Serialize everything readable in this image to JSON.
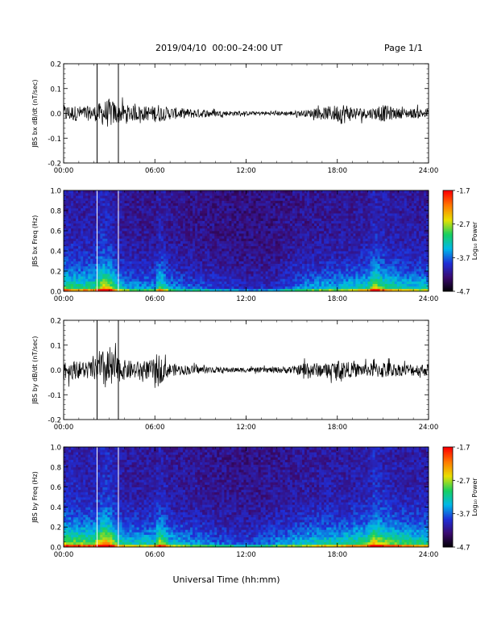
{
  "header": {
    "title": "2019/04/10  00:00–24:00 UT",
    "page": "Page 1/1"
  },
  "colors": {
    "background": "#ffffff",
    "trace": "#000000",
    "colormap": [
      "#000000",
      "#3a0a6e",
      "#1f2fd8",
      "#00b8e8",
      "#18d060",
      "#e8e000",
      "#ff7a00",
      "#ff0000"
    ]
  },
  "chart_data": [
    {
      "type": "line",
      "ylabel": "JBS bx dB/dt (nT/sec)",
      "ylim": [
        -0.2,
        0.2
      ],
      "yticks": [
        "0.2",
        "0.1",
        "0.0",
        "-0.1",
        "-0.2"
      ],
      "yticks_values": [
        0.2,
        0.1,
        0.0,
        -0.1,
        -0.2
      ],
      "xlim_hours": [
        0,
        24
      ],
      "xticks": [
        "00:00",
        "06:00",
        "12:00",
        "18:00",
        "24:00"
      ],
      "markers_hours": [
        2.2,
        3.6
      ],
      "envelope": {
        "hours": [
          0,
          1,
          2,
          2.6,
          3,
          3.3,
          3.6,
          4,
          5,
          5.8,
          6.2,
          6.5,
          7,
          8,
          9,
          10,
          11,
          12,
          13,
          14,
          15,
          15.5,
          16,
          16.5,
          17,
          17.5,
          18,
          18.3,
          19,
          20,
          20.5,
          21,
          22,
          23,
          24
        ],
        "amplitude": [
          0.035,
          0.03,
          0.03,
          0.05,
          0.06,
          0.05,
          0.04,
          0.035,
          0.03,
          0.03,
          0.04,
          0.03,
          0.025,
          0.02,
          0.018,
          0.012,
          0.01,
          0.008,
          0.008,
          0.008,
          0.01,
          0.012,
          0.014,
          0.018,
          0.022,
          0.03,
          0.035,
          0.045,
          0.028,
          0.02,
          0.025,
          0.035,
          0.02,
          0.02,
          0.02
        ]
      }
    },
    {
      "type": "heatmap",
      "ylabel": "JBS bx Freq (Hz)",
      "ylim": [
        0.0,
        1.0
      ],
      "yticks": [
        "1.0",
        "0.8",
        "0.6",
        "0.4",
        "0.2",
        "0.0"
      ],
      "yticks_values": [
        1.0,
        0.8,
        0.6,
        0.4,
        0.2,
        0.0
      ],
      "xlim_hours": [
        0,
        24
      ],
      "xticks": [
        "00:00",
        "06:00",
        "12:00",
        "18:00",
        "24:00"
      ],
      "markers_hours": [
        2.2,
        3.6
      ],
      "colorbar": {
        "label": "Log₁₀ Power",
        "range": [
          -4.7,
          -1.7
        ],
        "ticks": [
          "-1.7",
          "-2.7",
          "-3.7",
          "-4.7"
        ],
        "ticks_values": [
          -1.7,
          -2.7,
          -3.7,
          -4.7
        ]
      },
      "activity": {
        "hours": [
          0,
          1,
          2,
          2.6,
          3,
          3.6,
          4,
          5,
          6,
          6.3,
          7,
          8,
          10,
          12,
          14,
          15,
          16,
          17,
          18,
          19,
          20,
          20.4,
          21,
          22,
          23,
          24
        ],
        "level": [
          0.55,
          0.5,
          0.5,
          0.75,
          0.7,
          0.4,
          0.35,
          0.3,
          0.3,
          0.55,
          0.3,
          0.25,
          0.18,
          0.12,
          0.15,
          0.25,
          0.3,
          0.35,
          0.35,
          0.4,
          0.45,
          0.7,
          0.55,
          0.45,
          0.4,
          0.4
        ]
      }
    },
    {
      "type": "line",
      "ylabel": "JBS by dB/dt (nT/sec)",
      "ylim": [
        -0.2,
        0.2
      ],
      "yticks": [
        "0.2",
        "0.1",
        "0.0",
        "-0.1",
        "-0.2"
      ],
      "yticks_values": [
        0.2,
        0.1,
        0.0,
        -0.1,
        -0.2
      ],
      "xlim_hours": [
        0,
        24
      ],
      "xticks": [
        "00:00",
        "06:00",
        "12:00",
        "18:00",
        "24:00"
      ],
      "markers_hours": [
        2.2,
        3.6
      ],
      "envelope": {
        "hours": [
          0,
          1,
          2,
          2.6,
          3,
          3.3,
          3.6,
          4,
          5,
          5.8,
          6.2,
          6.5,
          7,
          8,
          9,
          10,
          11,
          12,
          13,
          14,
          15,
          15.5,
          16,
          16.5,
          17,
          17.5,
          18,
          18.3,
          19,
          20,
          20.5,
          21,
          22,
          23,
          24
        ],
        "amplitude": [
          0.04,
          0.035,
          0.04,
          0.08,
          0.1,
          0.07,
          0.05,
          0.04,
          0.035,
          0.04,
          0.07,
          0.045,
          0.025,
          0.02,
          0.015,
          0.012,
          0.01,
          0.01,
          0.01,
          0.012,
          0.015,
          0.02,
          0.04,
          0.03,
          0.025,
          0.03,
          0.035,
          0.04,
          0.028,
          0.025,
          0.03,
          0.035,
          0.025,
          0.025,
          0.025
        ]
      }
    },
    {
      "type": "heatmap",
      "ylabel": "JBS by Freq (Hz)",
      "ylim": [
        0.0,
        1.0
      ],
      "yticks": [
        "1.0",
        "0.8",
        "0.6",
        "0.4",
        "0.2",
        "0.0"
      ],
      "yticks_values": [
        1.0,
        0.8,
        0.6,
        0.4,
        0.2,
        0.0
      ],
      "xlim_hours": [
        0,
        24
      ],
      "xticks": [
        "00:00",
        "06:00",
        "12:00",
        "18:00",
        "24:00"
      ],
      "markers_hours": [
        2.2,
        3.6
      ],
      "colorbar": {
        "label": "Log₁₀ Power",
        "range": [
          -4.7,
          -1.7
        ],
        "ticks": [
          "-1.7",
          "-2.7",
          "-3.7",
          "-4.7"
        ],
        "ticks_values": [
          -1.7,
          -2.7,
          -3.7,
          -4.7
        ]
      },
      "activity": {
        "hours": [
          0,
          1,
          2,
          2.6,
          3,
          3.6,
          4,
          5,
          6,
          6.3,
          7,
          8,
          10,
          12,
          14,
          15,
          16,
          17,
          18,
          19,
          20,
          20.4,
          21,
          22,
          23,
          24
        ],
        "level": [
          0.65,
          0.6,
          0.6,
          0.85,
          0.8,
          0.5,
          0.45,
          0.4,
          0.45,
          0.7,
          0.4,
          0.35,
          0.25,
          0.2,
          0.3,
          0.35,
          0.4,
          0.45,
          0.45,
          0.5,
          0.55,
          0.8,
          0.65,
          0.55,
          0.5,
          0.5
        ]
      }
    }
  ],
  "xlabel": "Universal Time (hh:mm)"
}
